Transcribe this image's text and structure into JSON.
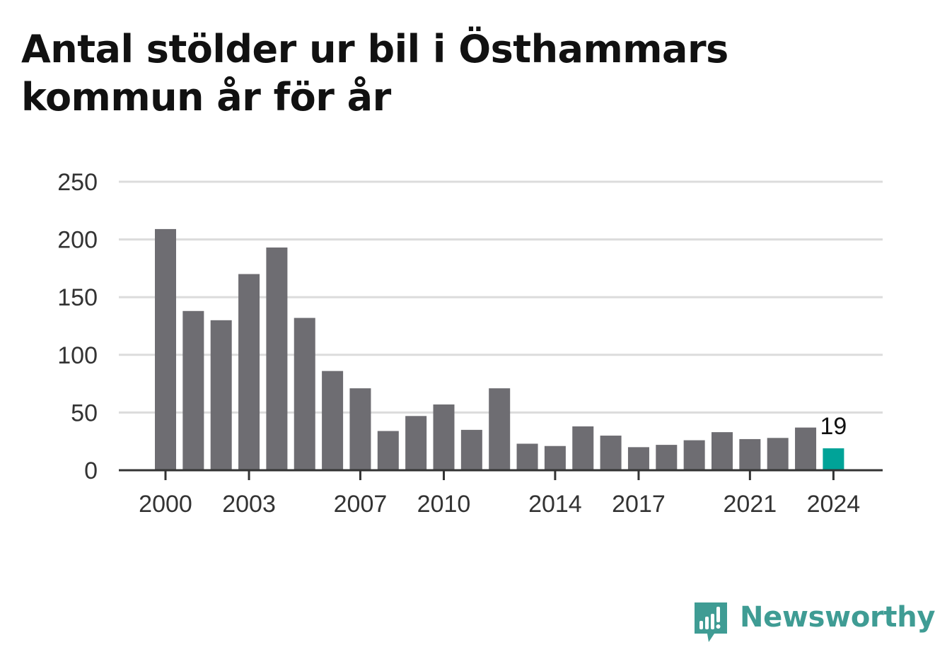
{
  "title": "Antal stölder ur bil i Östhammars kommun år för år",
  "brand": {
    "name": "Newsworthy",
    "icon": "newsworthy-logo-icon"
  },
  "colors": {
    "bar": "#6e6d72",
    "highlight": "#00a398",
    "grid": "#dcdcdc",
    "axis": "#333333",
    "brand": "#3f9c94"
  },
  "chart_data": {
    "type": "bar",
    "title": "Antal stölder ur bil i Östhammars kommun år för år",
    "xlabel": "",
    "ylabel": "",
    "x": [
      2000,
      2001,
      2002,
      2003,
      2004,
      2005,
      2006,
      2007,
      2008,
      2009,
      2010,
      2011,
      2012,
      2013,
      2014,
      2015,
      2016,
      2017,
      2018,
      2019,
      2020,
      2021,
      2022,
      2023,
      2024
    ],
    "values": [
      209,
      138,
      130,
      170,
      193,
      132,
      86,
      71,
      34,
      47,
      57,
      35,
      71,
      23,
      21,
      38,
      30,
      20,
      22,
      26,
      33,
      27,
      28,
      37,
      19
    ],
    "x_ticks": [
      "2000",
      "2003",
      "2007",
      "2010",
      "2014",
      "2017",
      "2021",
      "2024"
    ],
    "y_ticks": [
      "0",
      "50",
      "100",
      "150",
      "200",
      "250"
    ],
    "ylim": [
      0,
      250
    ],
    "grid": true,
    "legend": "none",
    "highlight": {
      "x": 2024,
      "label": "19"
    }
  }
}
